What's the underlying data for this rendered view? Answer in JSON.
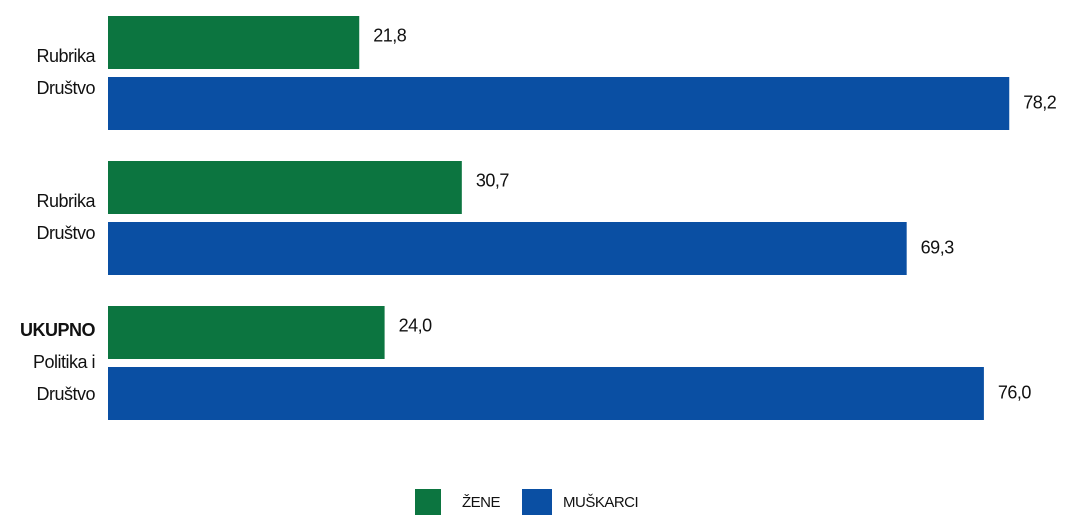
{
  "chart_data": {
    "type": "barh",
    "categories": [
      [
        "Rubrika",
        "Društvo"
      ],
      [
        "Rubrika",
        "Društvo"
      ],
      [
        "UKUPNO",
        "Politika i",
        "Društvo"
      ]
    ],
    "category_bold_first": [
      false,
      false,
      true
    ],
    "series": [
      {
        "name": "ŽENE",
        "color": "#0c7540",
        "values": [
          21.8,
          30.7,
          24.0
        ],
        "value_labels": [
          "21,8",
          "30,7",
          "24,0"
        ]
      },
      {
        "name": "MUŠKARCI",
        "color": "#0a4fa3",
        "values": [
          78.2,
          69.3,
          76.0
        ],
        "value_labels": [
          "78,2",
          "69,3",
          "76,0"
        ]
      }
    ],
    "xlim": [
      0,
      80
    ],
    "legend": "bottom"
  }
}
